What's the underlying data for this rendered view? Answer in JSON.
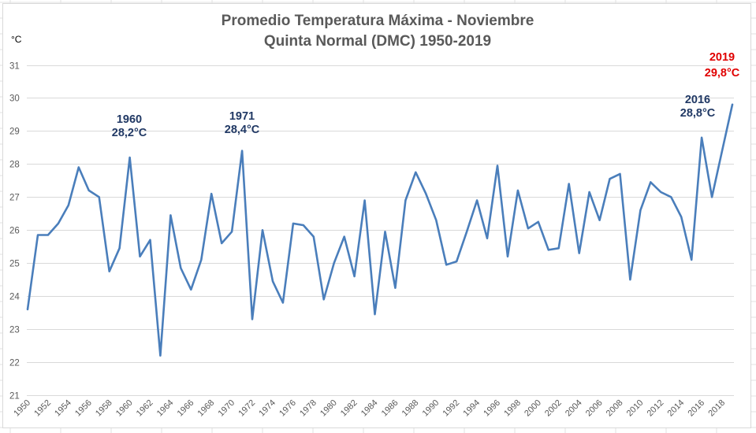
{
  "chart_data": {
    "type": "line",
    "title": "Promedio Temperatura Máxima - Noviembre",
    "subtitle": "Quinta Normal (DMC) 1950-2019",
    "xlabel": "",
    "ylabel": "°C",
    "ylim": [
      21,
      31
    ],
    "yticks": [
      "21",
      "22",
      "23",
      "24",
      "25",
      "26",
      "27",
      "28",
      "29",
      "30",
      "31"
    ],
    "grid": true,
    "legend": "none",
    "x": [
      1950,
      1951,
      1952,
      1953,
      1954,
      1955,
      1956,
      1957,
      1958,
      1959,
      1960,
      1961,
      1962,
      1963,
      1964,
      1965,
      1966,
      1967,
      1968,
      1969,
      1970,
      1971,
      1972,
      1973,
      1974,
      1975,
      1976,
      1977,
      1978,
      1979,
      1980,
      1981,
      1982,
      1983,
      1984,
      1985,
      1986,
      1987,
      1988,
      1989,
      1990,
      1991,
      1992,
      1993,
      1994,
      1995,
      1996,
      1997,
      1998,
      1999,
      2000,
      2001,
      2002,
      2003,
      2004,
      2005,
      2006,
      2007,
      2008,
      2009,
      2010,
      2011,
      2012,
      2013,
      2014,
      2015,
      2016,
      2017,
      2018,
      2019
    ],
    "xticks": [
      "1950",
      "1952",
      "1954",
      "1956",
      "1958",
      "1960",
      "1962",
      "1964",
      "1966",
      "1968",
      "1970",
      "1972",
      "1974",
      "1976",
      "1978",
      "1980",
      "1982",
      "1984",
      "1986",
      "1988",
      "1990",
      "1992",
      "1994",
      "1996",
      "1998",
      "2000",
      "2002",
      "2004",
      "2006",
      "2008",
      "2010",
      "2012",
      "2014",
      "2016",
      "2018"
    ],
    "series": [
      {
        "name": "Promedio Temperatura Máxima - Noviembre",
        "color": "#4a7ebb",
        "values": [
          23.6,
          25.85,
          25.85,
          26.2,
          26.75,
          27.9,
          27.2,
          27.0,
          24.75,
          25.45,
          28.2,
          25.2,
          25.7,
          22.2,
          26.45,
          24.85,
          24.2,
          25.1,
          27.1,
          25.6,
          25.95,
          28.4,
          23.3,
          26.0,
          24.45,
          23.8,
          26.2,
          26.15,
          25.8,
          23.9,
          25.0,
          25.8,
          24.6,
          26.9,
          23.45,
          25.95,
          24.25,
          26.9,
          27.75,
          27.1,
          26.3,
          24.95,
          25.05,
          25.95,
          26.9,
          25.75,
          27.95,
          25.2,
          27.2,
          26.05,
          26.25,
          25.4,
          25.45,
          27.4,
          25.3,
          27.15,
          26.3,
          27.55,
          27.7,
          24.5,
          26.6,
          27.45,
          27.15,
          27.0,
          26.4,
          25.1,
          28.8,
          27.0,
          28.4,
          29.8
        ]
      }
    ],
    "annotations": [
      {
        "year": 1960,
        "line1": "1960",
        "line2": "28,2°C",
        "color": "#203864"
      },
      {
        "year": 1971,
        "line1": "1971",
        "line2": "28,4°C",
        "color": "#203864"
      },
      {
        "year": 2016,
        "line1": "2016",
        "line2": "28,8°C",
        "color": "#203864"
      },
      {
        "year": 2019,
        "line1": "2019",
        "line2": "29,8°C",
        "color": "#e00000"
      }
    ]
  }
}
